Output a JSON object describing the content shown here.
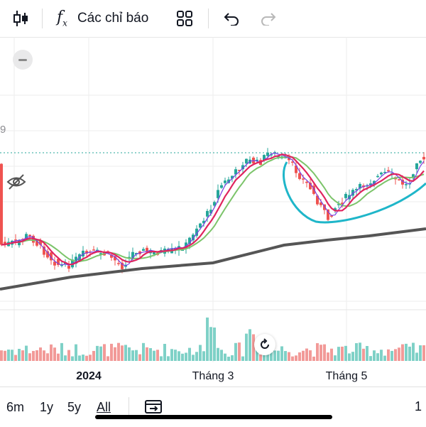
{
  "toolbar": {
    "items": [
      {
        "icon": "candlestick-icon"
      },
      {
        "icon": "fx-icon",
        "label": "Các chỉ báo"
      },
      {
        "icon": "grid-layout-icon"
      },
      {
        "icon": "undo-icon"
      },
      {
        "icon": "redo-icon"
      }
    ]
  },
  "chart_data": {
    "type": "candlestick",
    "x_tick_labels": [
      "2024",
      "Tháng 3",
      "Tháng 5"
    ],
    "price_label_fragment": "9",
    "moving_averages": [
      {
        "color": "#e0245e",
        "role": "fast MA"
      },
      {
        "color": "#7b3fe4",
        "role": "short MA"
      },
      {
        "color": "#7cc46a",
        "role": "medium MA"
      },
      {
        "color": "#555555",
        "role": "long MA"
      }
    ],
    "up_color": "#26a69a",
    "down_color": "#ef5350",
    "annotation": {
      "shape": "cup-and-handle drawing",
      "color": "#1fb6c9"
    }
  },
  "bottom_bar": {
    "ranges": [
      "6m",
      "1y",
      "5y",
      "All"
    ],
    "active_range": "All",
    "edge_label": "1"
  }
}
